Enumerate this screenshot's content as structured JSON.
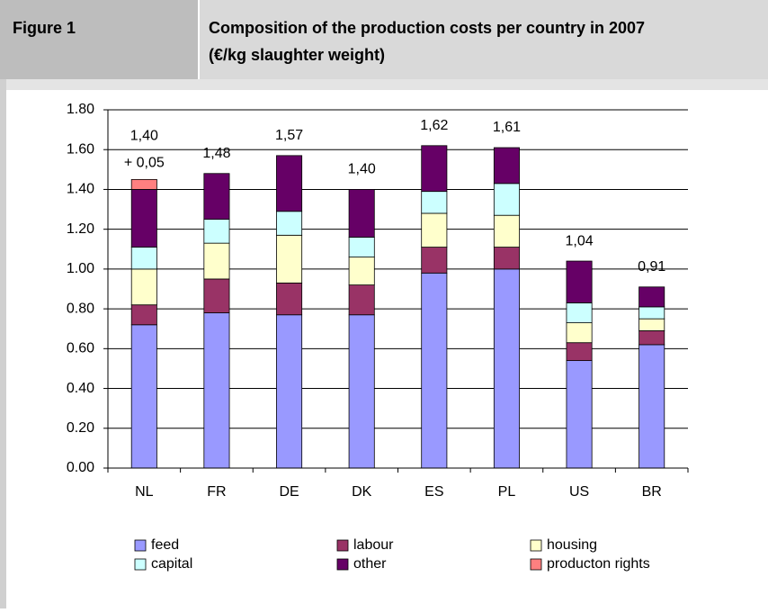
{
  "header": {
    "figure": "Figure 1",
    "title_lines": [
      "Composition of the production costs per country in 2007",
      "(€/kg slaughter weight)"
    ]
  },
  "chart_data": {
    "type": "stacked-bar",
    "categories": [
      "NL",
      "FR",
      "DE",
      "DK",
      "ES",
      "PL",
      "US",
      "BR"
    ],
    "series": [
      {
        "name": "feed",
        "color": "#9999ff",
        "values": [
          0.72,
          0.78,
          0.77,
          0.77,
          0.98,
          1.0,
          0.54,
          0.62
        ]
      },
      {
        "name": "labour",
        "color": "#993366",
        "values": [
          0.1,
          0.17,
          0.16,
          0.15,
          0.13,
          0.11,
          0.09,
          0.07
        ]
      },
      {
        "name": "housing",
        "color": "#ffffcc",
        "values": [
          0.18,
          0.18,
          0.24,
          0.14,
          0.17,
          0.16,
          0.1,
          0.06
        ]
      },
      {
        "name": "capital",
        "color": "#ccffff",
        "values": [
          0.11,
          0.12,
          0.12,
          0.1,
          0.11,
          0.16,
          0.1,
          0.06
        ]
      },
      {
        "name": "other",
        "color": "#660066",
        "values": [
          0.29,
          0.23,
          0.28,
          0.24,
          0.23,
          0.18,
          0.21,
          0.1
        ]
      },
      {
        "name": "producton rights",
        "color": "#ff8080",
        "values": [
          0.05,
          null,
          null,
          null,
          null,
          null,
          null,
          null
        ],
        "value_labels": [
          "+ 0,05",
          null,
          null,
          null,
          null,
          null,
          null,
          null
        ]
      }
    ],
    "totals": {
      "values": [
        1.4,
        1.48,
        1.57,
        1.4,
        1.62,
        1.61,
        1.04,
        0.91
      ],
      "value_labels": [
        "1,40",
        "1,48",
        "1,57",
        "1,40",
        "1,62",
        "1,61",
        "1,04",
        "0,91"
      ]
    },
    "ylim": [
      0,
      1.8
    ],
    "yticks": [
      {
        "value": 0,
        "label": "0.00"
      },
      {
        "value": 0.2,
        "label": "0.20"
      },
      {
        "value": 0.4,
        "label": "0.40"
      },
      {
        "value": 0.6,
        "label": "0.60"
      },
      {
        "value": 0.8,
        "label": "0.80"
      },
      {
        "value": 1.0,
        "label": "1.00"
      },
      {
        "value": 1.2,
        "label": "1.20"
      },
      {
        "value": 1.4,
        "label": "1.40"
      },
      {
        "value": 1.6,
        "label": "1.60"
      },
      {
        "value": 1.8,
        "label": "1.80"
      }
    ],
    "grid": true
  }
}
